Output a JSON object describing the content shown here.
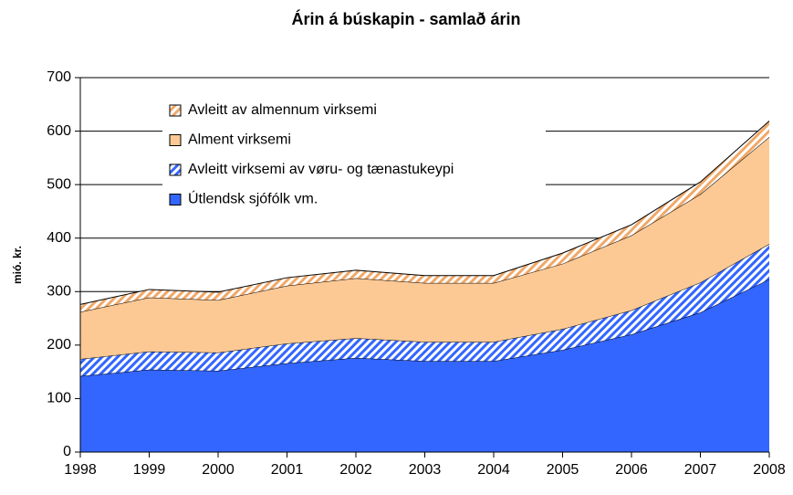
{
  "chart_data": {
    "type": "stacked_area",
    "title": "Árin á búskapin - samlað árin",
    "ylabel": "mió. kr.",
    "x": [
      1998,
      1999,
      2000,
      2001,
      2002,
      2003,
      2004,
      2005,
      2006,
      2007,
      2008
    ],
    "xlim": [
      1998,
      2008
    ],
    "xticks": [
      1998,
      1999,
      2000,
      2001,
      2002,
      2003,
      2004,
      2005,
      2006,
      2007,
      2008
    ],
    "ylim": [
      0,
      700
    ],
    "yticks": [
      0,
      100,
      200,
      300,
      400,
      500,
      600,
      700
    ],
    "grid": true,
    "series": [
      {
        "name": "Útlendsk sjófólk vm.",
        "color": "#3366ff",
        "hatch": false,
        "values": [
          142,
          154,
          152,
          166,
          176,
          170,
          170,
          191,
          220,
          261,
          323
        ]
      },
      {
        "name": "Avleitt virksemi av vøru- og tænastukeypi",
        "color": "#3366ff",
        "hatch": true,
        "values": [
          32,
          34,
          34,
          37,
          37,
          36,
          36,
          39,
          45,
          56,
          66
        ]
      },
      {
        "name": "Alment virksemi",
        "color": "#fcc995",
        "hatch": false,
        "values": [
          88,
          101,
          98,
          108,
          112,
          110,
          110,
          122,
          140,
          165,
          200
        ]
      },
      {
        "name": "Avleitt av almennum virksemi",
        "color": "#f0a868",
        "hatch": true,
        "values": [
          14,
          15,
          15,
          15,
          15,
          14,
          14,
          20,
          20,
          23,
          30
        ]
      }
    ]
  }
}
